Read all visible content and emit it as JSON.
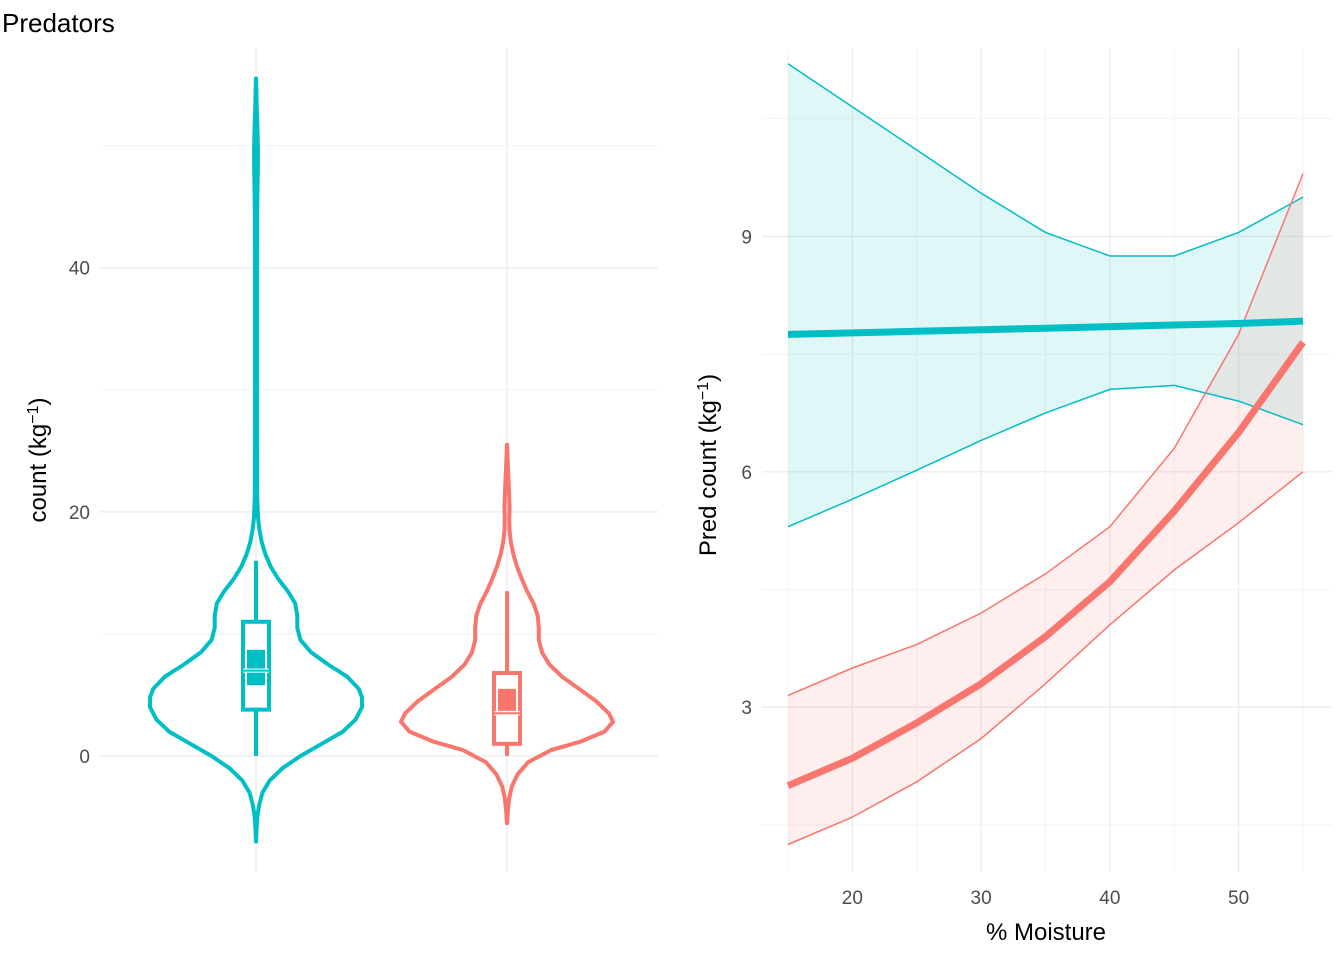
{
  "title": "Predators",
  "chart_data": [
    {
      "type": "violin",
      "title": "",
      "xlabel": "",
      "ylabel": "count (kg",
      "ylabel_sup": "−1",
      "ylabel_close": ")",
      "ylim": [
        -9.5,
        58
      ],
      "yticks": [
        0,
        20,
        40
      ],
      "grid": true,
      "legend": "none",
      "groups": [
        {
          "color": "#00BFC4",
          "min": -7,
          "max": 55.5,
          "q1": 3.8,
          "median": 7,
          "q3": 11,
          "whisker_low": 0,
          "whisker_high": 16,
          "mean_band": [
            5.8,
            8.7
          ],
          "density": [
            [
              -7,
              0.001
            ],
            [
              -6,
              0.005
            ],
            [
              -5,
              0.012
            ],
            [
              -4,
              0.03
            ],
            [
              -3,
              0.06
            ],
            [
              -2,
              0.13
            ],
            [
              -1,
              0.25
            ],
            [
              0,
              0.42
            ],
            [
              1,
              0.62
            ],
            [
              2,
              0.82
            ],
            [
              3,
              0.94
            ],
            [
              4,
              1.0
            ],
            [
              4.8,
              1.0
            ],
            [
              5.5,
              0.97
            ],
            [
              6.5,
              0.86
            ],
            [
              7.5,
              0.68
            ],
            [
              8.5,
              0.52
            ],
            [
              9.5,
              0.42
            ],
            [
              10.5,
              0.39
            ],
            [
              11.5,
              0.39
            ],
            [
              12.5,
              0.37
            ],
            [
              13.5,
              0.3
            ],
            [
              14.5,
              0.21
            ],
            [
              15.5,
              0.14
            ],
            [
              16.5,
              0.09
            ],
            [
              17.5,
              0.055
            ],
            [
              18.5,
              0.033
            ],
            [
              19.5,
              0.02
            ],
            [
              21,
              0.012
            ],
            [
              23,
              0.01
            ],
            [
              27,
              0.009
            ],
            [
              33,
              0.009
            ],
            [
              40,
              0.009
            ],
            [
              44,
              0.01
            ],
            [
              46,
              0.013
            ],
            [
              48,
              0.017
            ],
            [
              49.5,
              0.018
            ],
            [
              51,
              0.015
            ],
            [
              53,
              0.008
            ],
            [
              55.5,
              0.001
            ]
          ]
        },
        {
          "color": "#F8766D",
          "min": -5.5,
          "max": 25.5,
          "q1": 1,
          "median": 3.5,
          "q3": 6.8,
          "whisker_low": 0,
          "whisker_high": 13.5,
          "mean_band": [
            3.7,
            5.5
          ],
          "density": [
            [
              -5.5,
              0.001
            ],
            [
              -4.5,
              0.008
            ],
            [
              -3.5,
              0.02
            ],
            [
              -2.5,
              0.045
            ],
            [
              -1.5,
              0.1
            ],
            [
              -0.5,
              0.2
            ],
            [
              0.5,
              0.42
            ],
            [
              1.2,
              0.7
            ],
            [
              2,
              0.92
            ],
            [
              2.8,
              1.0
            ],
            [
              3.5,
              0.96
            ],
            [
              4.5,
              0.84
            ],
            [
              5.5,
              0.68
            ],
            [
              6.5,
              0.52
            ],
            [
              7.5,
              0.4
            ],
            [
              8.5,
              0.33
            ],
            [
              9.5,
              0.3
            ],
            [
              10.5,
              0.3
            ],
            [
              11.5,
              0.29
            ],
            [
              12.5,
              0.25
            ],
            [
              13.5,
              0.19
            ],
            [
              14.5,
              0.14
            ],
            [
              15.5,
              0.095
            ],
            [
              16.5,
              0.06
            ],
            [
              17.5,
              0.037
            ],
            [
              18.5,
              0.024
            ],
            [
              19.5,
              0.022
            ],
            [
              20.5,
              0.024
            ],
            [
              21.5,
              0.02
            ],
            [
              23,
              0.012
            ],
            [
              24.5,
              0.005
            ],
            [
              25.5,
              0.001
            ]
          ]
        }
      ]
    },
    {
      "type": "line",
      "title": "",
      "xlabel": "% Moisture",
      "ylabel": "Pred count (kg",
      "ylabel_sup": "−1",
      "ylabel_close": ")",
      "xlim": [
        15,
        55
      ],
      "ylim": [
        0.9,
        11.4
      ],
      "xticks": [
        20,
        30,
        40,
        50
      ],
      "yticks": [
        3,
        6,
        9
      ],
      "grid": true,
      "legend": "none",
      "series": [
        {
          "color": "#00BFC4",
          "x": [
            15,
            20,
            25,
            30,
            35,
            40,
            45,
            50,
            55
          ],
          "y": [
            7.75,
            7.77,
            7.79,
            7.81,
            7.83,
            7.85,
            7.87,
            7.89,
            7.92
          ],
          "lower": [
            5.3,
            5.65,
            6.02,
            6.4,
            6.75,
            7.05,
            7.1,
            6.9,
            6.6
          ],
          "upper": [
            11.2,
            10.65,
            10.1,
            9.55,
            9.05,
            8.75,
            8.75,
            9.05,
            9.5
          ]
        },
        {
          "color": "#F8766D",
          "x": [
            15,
            20,
            25,
            30,
            35,
            40,
            45,
            50,
            55
          ],
          "y": [
            2.0,
            2.35,
            2.8,
            3.3,
            3.9,
            4.6,
            5.5,
            6.5,
            7.65
          ],
          "lower": [
            1.25,
            1.6,
            2.05,
            2.6,
            3.3,
            4.05,
            4.75,
            5.35,
            6.0
          ],
          "upper": [
            3.15,
            3.5,
            3.8,
            4.2,
            4.7,
            5.3,
            6.3,
            7.75,
            9.8
          ]
        }
      ]
    }
  ]
}
